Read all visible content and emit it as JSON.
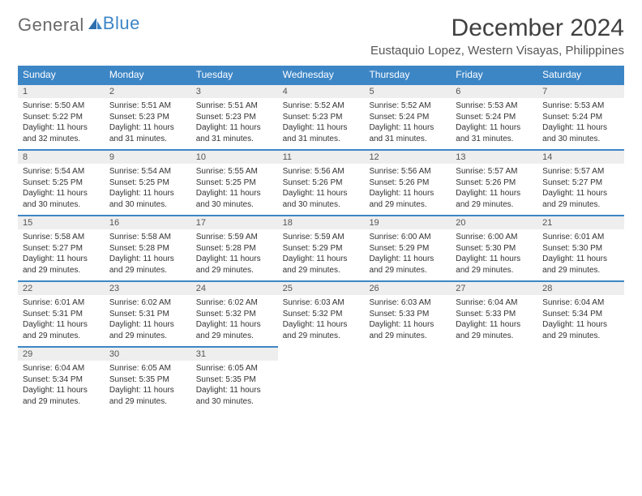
{
  "brand": {
    "part1": "General",
    "part2": "Blue"
  },
  "title": "December 2024",
  "location": "Eustaquio Lopez, Western Visayas, Philippines",
  "colors": {
    "header_bg": "#3d86c6",
    "header_text": "#ffffff",
    "daynum_bg": "#eeeeee",
    "daynum_border": "#3d86c6",
    "body_text": "#333333",
    "page_bg": "#ffffff"
  },
  "typography": {
    "month_title_fontsize": 30,
    "location_fontsize": 15,
    "dow_fontsize": 12,
    "daynum_fontsize": 11,
    "body_fontsize": 10
  },
  "days_of_week": [
    "Sunday",
    "Monday",
    "Tuesday",
    "Wednesday",
    "Thursday",
    "Friday",
    "Saturday"
  ],
  "weeks": [
    [
      {
        "n": "1",
        "sunrise": "Sunrise: 5:50 AM",
        "sunset": "Sunset: 5:22 PM",
        "daylight": "Daylight: 11 hours and 32 minutes."
      },
      {
        "n": "2",
        "sunrise": "Sunrise: 5:51 AM",
        "sunset": "Sunset: 5:23 PM",
        "daylight": "Daylight: 11 hours and 31 minutes."
      },
      {
        "n": "3",
        "sunrise": "Sunrise: 5:51 AM",
        "sunset": "Sunset: 5:23 PM",
        "daylight": "Daylight: 11 hours and 31 minutes."
      },
      {
        "n": "4",
        "sunrise": "Sunrise: 5:52 AM",
        "sunset": "Sunset: 5:23 PM",
        "daylight": "Daylight: 11 hours and 31 minutes."
      },
      {
        "n": "5",
        "sunrise": "Sunrise: 5:52 AM",
        "sunset": "Sunset: 5:24 PM",
        "daylight": "Daylight: 11 hours and 31 minutes."
      },
      {
        "n": "6",
        "sunrise": "Sunrise: 5:53 AM",
        "sunset": "Sunset: 5:24 PM",
        "daylight": "Daylight: 11 hours and 31 minutes."
      },
      {
        "n": "7",
        "sunrise": "Sunrise: 5:53 AM",
        "sunset": "Sunset: 5:24 PM",
        "daylight": "Daylight: 11 hours and 30 minutes."
      }
    ],
    [
      {
        "n": "8",
        "sunrise": "Sunrise: 5:54 AM",
        "sunset": "Sunset: 5:25 PM",
        "daylight": "Daylight: 11 hours and 30 minutes."
      },
      {
        "n": "9",
        "sunrise": "Sunrise: 5:54 AM",
        "sunset": "Sunset: 5:25 PM",
        "daylight": "Daylight: 11 hours and 30 minutes."
      },
      {
        "n": "10",
        "sunrise": "Sunrise: 5:55 AM",
        "sunset": "Sunset: 5:25 PM",
        "daylight": "Daylight: 11 hours and 30 minutes."
      },
      {
        "n": "11",
        "sunrise": "Sunrise: 5:56 AM",
        "sunset": "Sunset: 5:26 PM",
        "daylight": "Daylight: 11 hours and 30 minutes."
      },
      {
        "n": "12",
        "sunrise": "Sunrise: 5:56 AM",
        "sunset": "Sunset: 5:26 PM",
        "daylight": "Daylight: 11 hours and 29 minutes."
      },
      {
        "n": "13",
        "sunrise": "Sunrise: 5:57 AM",
        "sunset": "Sunset: 5:26 PM",
        "daylight": "Daylight: 11 hours and 29 minutes."
      },
      {
        "n": "14",
        "sunrise": "Sunrise: 5:57 AM",
        "sunset": "Sunset: 5:27 PM",
        "daylight": "Daylight: 11 hours and 29 minutes."
      }
    ],
    [
      {
        "n": "15",
        "sunrise": "Sunrise: 5:58 AM",
        "sunset": "Sunset: 5:27 PM",
        "daylight": "Daylight: 11 hours and 29 minutes."
      },
      {
        "n": "16",
        "sunrise": "Sunrise: 5:58 AM",
        "sunset": "Sunset: 5:28 PM",
        "daylight": "Daylight: 11 hours and 29 minutes."
      },
      {
        "n": "17",
        "sunrise": "Sunrise: 5:59 AM",
        "sunset": "Sunset: 5:28 PM",
        "daylight": "Daylight: 11 hours and 29 minutes."
      },
      {
        "n": "18",
        "sunrise": "Sunrise: 5:59 AM",
        "sunset": "Sunset: 5:29 PM",
        "daylight": "Daylight: 11 hours and 29 minutes."
      },
      {
        "n": "19",
        "sunrise": "Sunrise: 6:00 AM",
        "sunset": "Sunset: 5:29 PM",
        "daylight": "Daylight: 11 hours and 29 minutes."
      },
      {
        "n": "20",
        "sunrise": "Sunrise: 6:00 AM",
        "sunset": "Sunset: 5:30 PM",
        "daylight": "Daylight: 11 hours and 29 minutes."
      },
      {
        "n": "21",
        "sunrise": "Sunrise: 6:01 AM",
        "sunset": "Sunset: 5:30 PM",
        "daylight": "Daylight: 11 hours and 29 minutes."
      }
    ],
    [
      {
        "n": "22",
        "sunrise": "Sunrise: 6:01 AM",
        "sunset": "Sunset: 5:31 PM",
        "daylight": "Daylight: 11 hours and 29 minutes."
      },
      {
        "n": "23",
        "sunrise": "Sunrise: 6:02 AM",
        "sunset": "Sunset: 5:31 PM",
        "daylight": "Daylight: 11 hours and 29 minutes."
      },
      {
        "n": "24",
        "sunrise": "Sunrise: 6:02 AM",
        "sunset": "Sunset: 5:32 PM",
        "daylight": "Daylight: 11 hours and 29 minutes."
      },
      {
        "n": "25",
        "sunrise": "Sunrise: 6:03 AM",
        "sunset": "Sunset: 5:32 PM",
        "daylight": "Daylight: 11 hours and 29 minutes."
      },
      {
        "n": "26",
        "sunrise": "Sunrise: 6:03 AM",
        "sunset": "Sunset: 5:33 PM",
        "daylight": "Daylight: 11 hours and 29 minutes."
      },
      {
        "n": "27",
        "sunrise": "Sunrise: 6:04 AM",
        "sunset": "Sunset: 5:33 PM",
        "daylight": "Daylight: 11 hours and 29 minutes."
      },
      {
        "n": "28",
        "sunrise": "Sunrise: 6:04 AM",
        "sunset": "Sunset: 5:34 PM",
        "daylight": "Daylight: 11 hours and 29 minutes."
      }
    ],
    [
      {
        "n": "29",
        "sunrise": "Sunrise: 6:04 AM",
        "sunset": "Sunset: 5:34 PM",
        "daylight": "Daylight: 11 hours and 29 minutes."
      },
      {
        "n": "30",
        "sunrise": "Sunrise: 6:05 AM",
        "sunset": "Sunset: 5:35 PM",
        "daylight": "Daylight: 11 hours and 29 minutes."
      },
      {
        "n": "31",
        "sunrise": "Sunrise: 6:05 AM",
        "sunset": "Sunset: 5:35 PM",
        "daylight": "Daylight: 11 hours and 30 minutes."
      },
      null,
      null,
      null,
      null
    ]
  ]
}
